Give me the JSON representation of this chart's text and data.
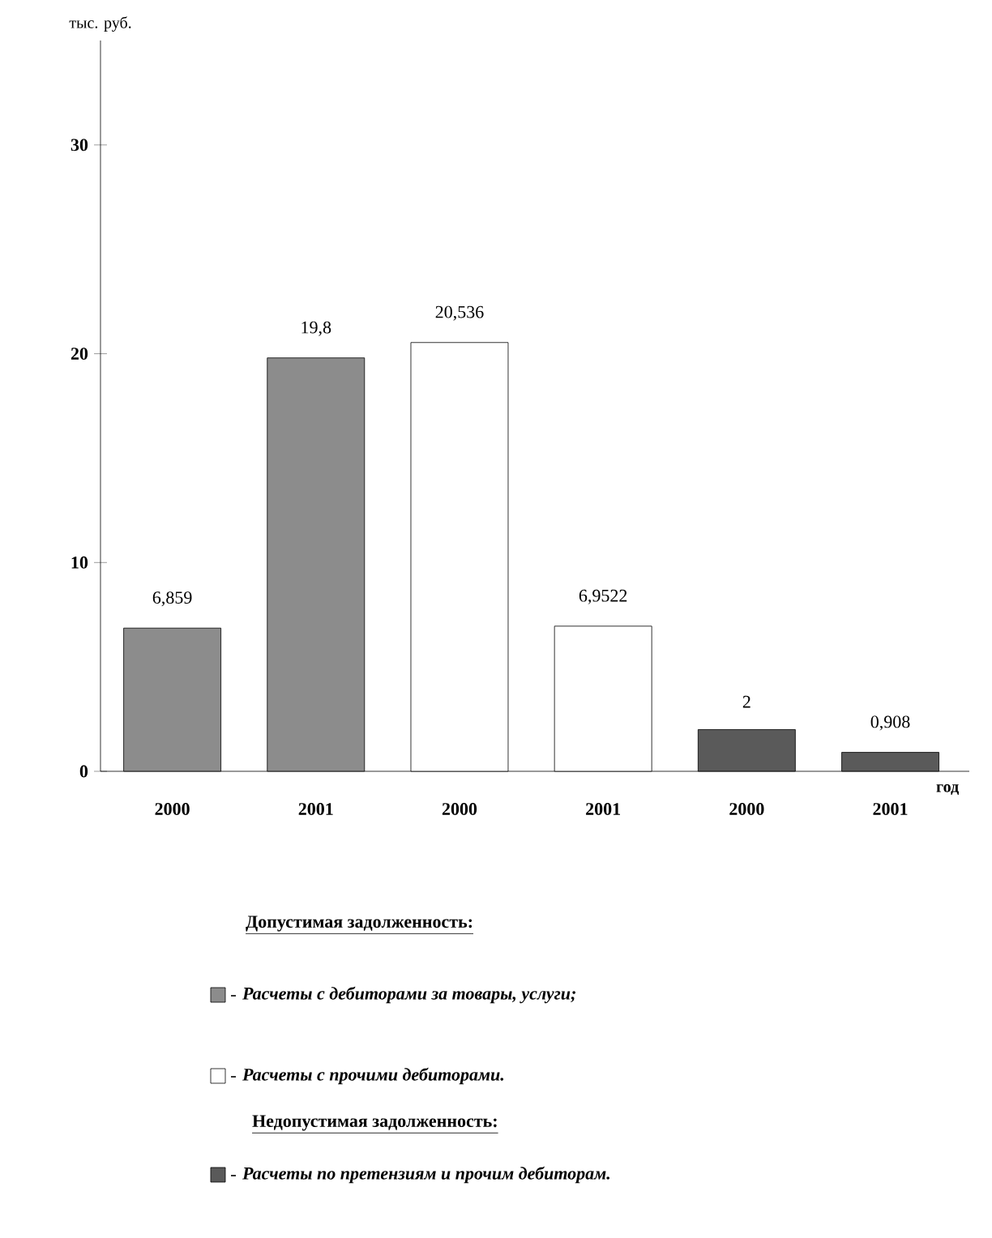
{
  "chart_data": {
    "type": "bar",
    "ylabel": "тыс. руб.",
    "xlabel": "год",
    "categories": [
      "2000",
      "2001",
      "2000",
      "2001",
      "2000",
      "2001"
    ],
    "series": [
      {
        "name": "Расчеты с дебиторами за товары, услуги;",
        "color": "#8c8c8c",
        "values": [
          6.859,
          19.8,
          null,
          null,
          null,
          null
        ],
        "value_labels": [
          "6,859",
          "19,8",
          null,
          null,
          null,
          null
        ]
      },
      {
        "name": "Расчеты с прочими дебиторами.",
        "color": "#ffffff",
        "values": [
          null,
          null,
          20.536,
          6.9522,
          null,
          null
        ],
        "value_labels": [
          null,
          null,
          "20,536",
          "6,9522",
          null,
          null
        ]
      },
      {
        "name": "Расчеты по претензиям и прочим дебиторам.",
        "color": "#5a5a5a",
        "values": [
          null,
          null,
          null,
          null,
          2,
          0.908
        ],
        "value_labels": [
          null,
          null,
          null,
          null,
          "2",
          "0,908"
        ]
      }
    ],
    "annotations": [
      "Допустимая задолженность:",
      "Недопустимая задолженность:"
    ],
    "ylim": [
      0,
      35
    ],
    "yticks": [
      0,
      10,
      20,
      30
    ],
    "legend": "bottom"
  }
}
